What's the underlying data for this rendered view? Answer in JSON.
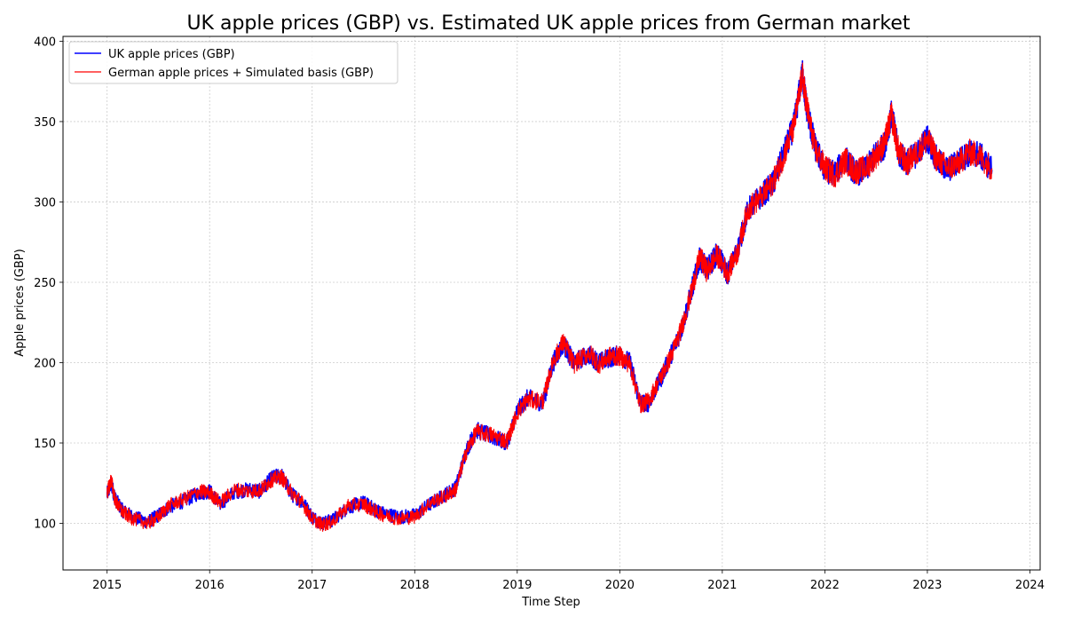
{
  "chart_data": {
    "type": "line",
    "title": "UK apple prices (GBP) vs. Estimated UK apple prices from German market",
    "xlabel": "Time Step",
    "ylabel": "Apple prices (GBP)",
    "xlim": [
      2014.57,
      2024.1
    ],
    "ylim": [
      71,
      403
    ],
    "x_ticks": [
      2015,
      2016,
      2017,
      2018,
      2019,
      2020,
      2021,
      2022,
      2023,
      2024
    ],
    "y_ticks": [
      100,
      150,
      200,
      250,
      300,
      350,
      400
    ],
    "grid": true,
    "legend_position": "top-left",
    "series": [
      {
        "name": "UK apple prices (GBP)",
        "color": "#0000ff",
        "x": [
          2015.0,
          2015.04,
          2015.08,
          2015.15,
          2015.25,
          2015.4,
          2015.5,
          2015.6,
          2015.75,
          2015.9,
          2016.0,
          2016.1,
          2016.25,
          2016.4,
          2016.5,
          2016.6,
          2016.7,
          2016.8,
          2016.9,
          2017.0,
          2017.1,
          2017.2,
          2017.35,
          2017.5,
          2017.6,
          2017.7,
          2017.85,
          2018.0,
          2018.15,
          2018.3,
          2018.4,
          2018.5,
          2018.6,
          2018.75,
          2018.9,
          2019.0,
          2019.1,
          2019.25,
          2019.35,
          2019.45,
          2019.55,
          2019.7,
          2019.8,
          2019.9,
          2020.0,
          2020.1,
          2020.2,
          2020.28,
          2020.4,
          2020.5,
          2020.6,
          2020.7,
          2020.78,
          2020.85,
          2020.95,
          2021.05,
          2021.15,
          2021.25,
          2021.4,
          2021.5,
          2021.6,
          2021.7,
          2021.78,
          2021.82,
          2021.9,
          2022.0,
          2022.1,
          2022.2,
          2022.3,
          2022.4,
          2022.5,
          2022.58,
          2022.65,
          2022.72,
          2022.8,
          2022.9,
          2023.0,
          2023.1,
          2023.2,
          2023.3,
          2023.4,
          2023.5,
          2023.63
        ],
        "values": [
          118,
          125,
          115,
          108,
          104,
          101,
          105,
          110,
          114,
          119,
          120,
          112,
          120,
          121,
          120,
          128,
          130,
          118,
          114,
          104,
          100,
          102,
          110,
          113,
          109,
          106,
          104,
          105,
          112,
          118,
          122,
          145,
          158,
          154,
          150,
          170,
          178,
          175,
          200,
          212,
          200,
          205,
          200,
          203,
          205,
          200,
          175,
          175,
          190,
          205,
          220,
          245,
          265,
          258,
          268,
          255,
          270,
          295,
          305,
          312,
          330,
          348,
          380,
          360,
          335,
          320,
          318,
          327,
          318,
          320,
          330,
          335,
          355,
          330,
          325,
          330,
          340,
          325,
          320,
          325,
          330,
          330,
          320
        ]
      },
      {
        "name": "German apple prices + Simulated basis (GBP)",
        "color": "#ff0000",
        "x": [
          2015.0,
          2015.04,
          2015.08,
          2015.15,
          2015.25,
          2015.4,
          2015.5,
          2015.6,
          2015.75,
          2015.9,
          2016.0,
          2016.1,
          2016.25,
          2016.4,
          2016.5,
          2016.6,
          2016.7,
          2016.8,
          2016.9,
          2017.0,
          2017.1,
          2017.2,
          2017.35,
          2017.5,
          2017.6,
          2017.7,
          2017.85,
          2018.0,
          2018.15,
          2018.3,
          2018.4,
          2018.5,
          2018.6,
          2018.75,
          2018.9,
          2019.0,
          2019.1,
          2019.25,
          2019.35,
          2019.45,
          2019.55,
          2019.7,
          2019.8,
          2019.9,
          2020.0,
          2020.1,
          2020.2,
          2020.28,
          2020.4,
          2020.5,
          2020.6,
          2020.7,
          2020.78,
          2020.85,
          2020.95,
          2021.05,
          2021.15,
          2021.25,
          2021.4,
          2021.5,
          2021.6,
          2021.7,
          2021.78,
          2021.82,
          2021.9,
          2022.0,
          2022.1,
          2022.2,
          2022.3,
          2022.4,
          2022.5,
          2022.58,
          2022.65,
          2022.72,
          2022.8,
          2022.9,
          2023.0,
          2023.1,
          2023.2,
          2023.3,
          2023.4,
          2023.5,
          2023.63
        ],
        "values": [
          119,
          127,
          114,
          107,
          103,
          100,
          104,
          111,
          115,
          120,
          119,
          113,
          121,
          120,
          121,
          127,
          129,
          119,
          113,
          103,
          99,
          101,
          111,
          112,
          108,
          105,
          103,
          104,
          113,
          117,
          121,
          144,
          157,
          155,
          151,
          169,
          177,
          176,
          201,
          213,
          199,
          206,
          199,
          204,
          204,
          199,
          174,
          176,
          191,
          204,
          221,
          244,
          266,
          257,
          267,
          256,
          269,
          296,
          304,
          313,
          329,
          347,
          379,
          361,
          334,
          321,
          317,
          326,
          319,
          321,
          329,
          336,
          354,
          331,
          324,
          331,
          339,
          326,
          321,
          324,
          331,
          329,
          321
        ]
      }
    ]
  }
}
